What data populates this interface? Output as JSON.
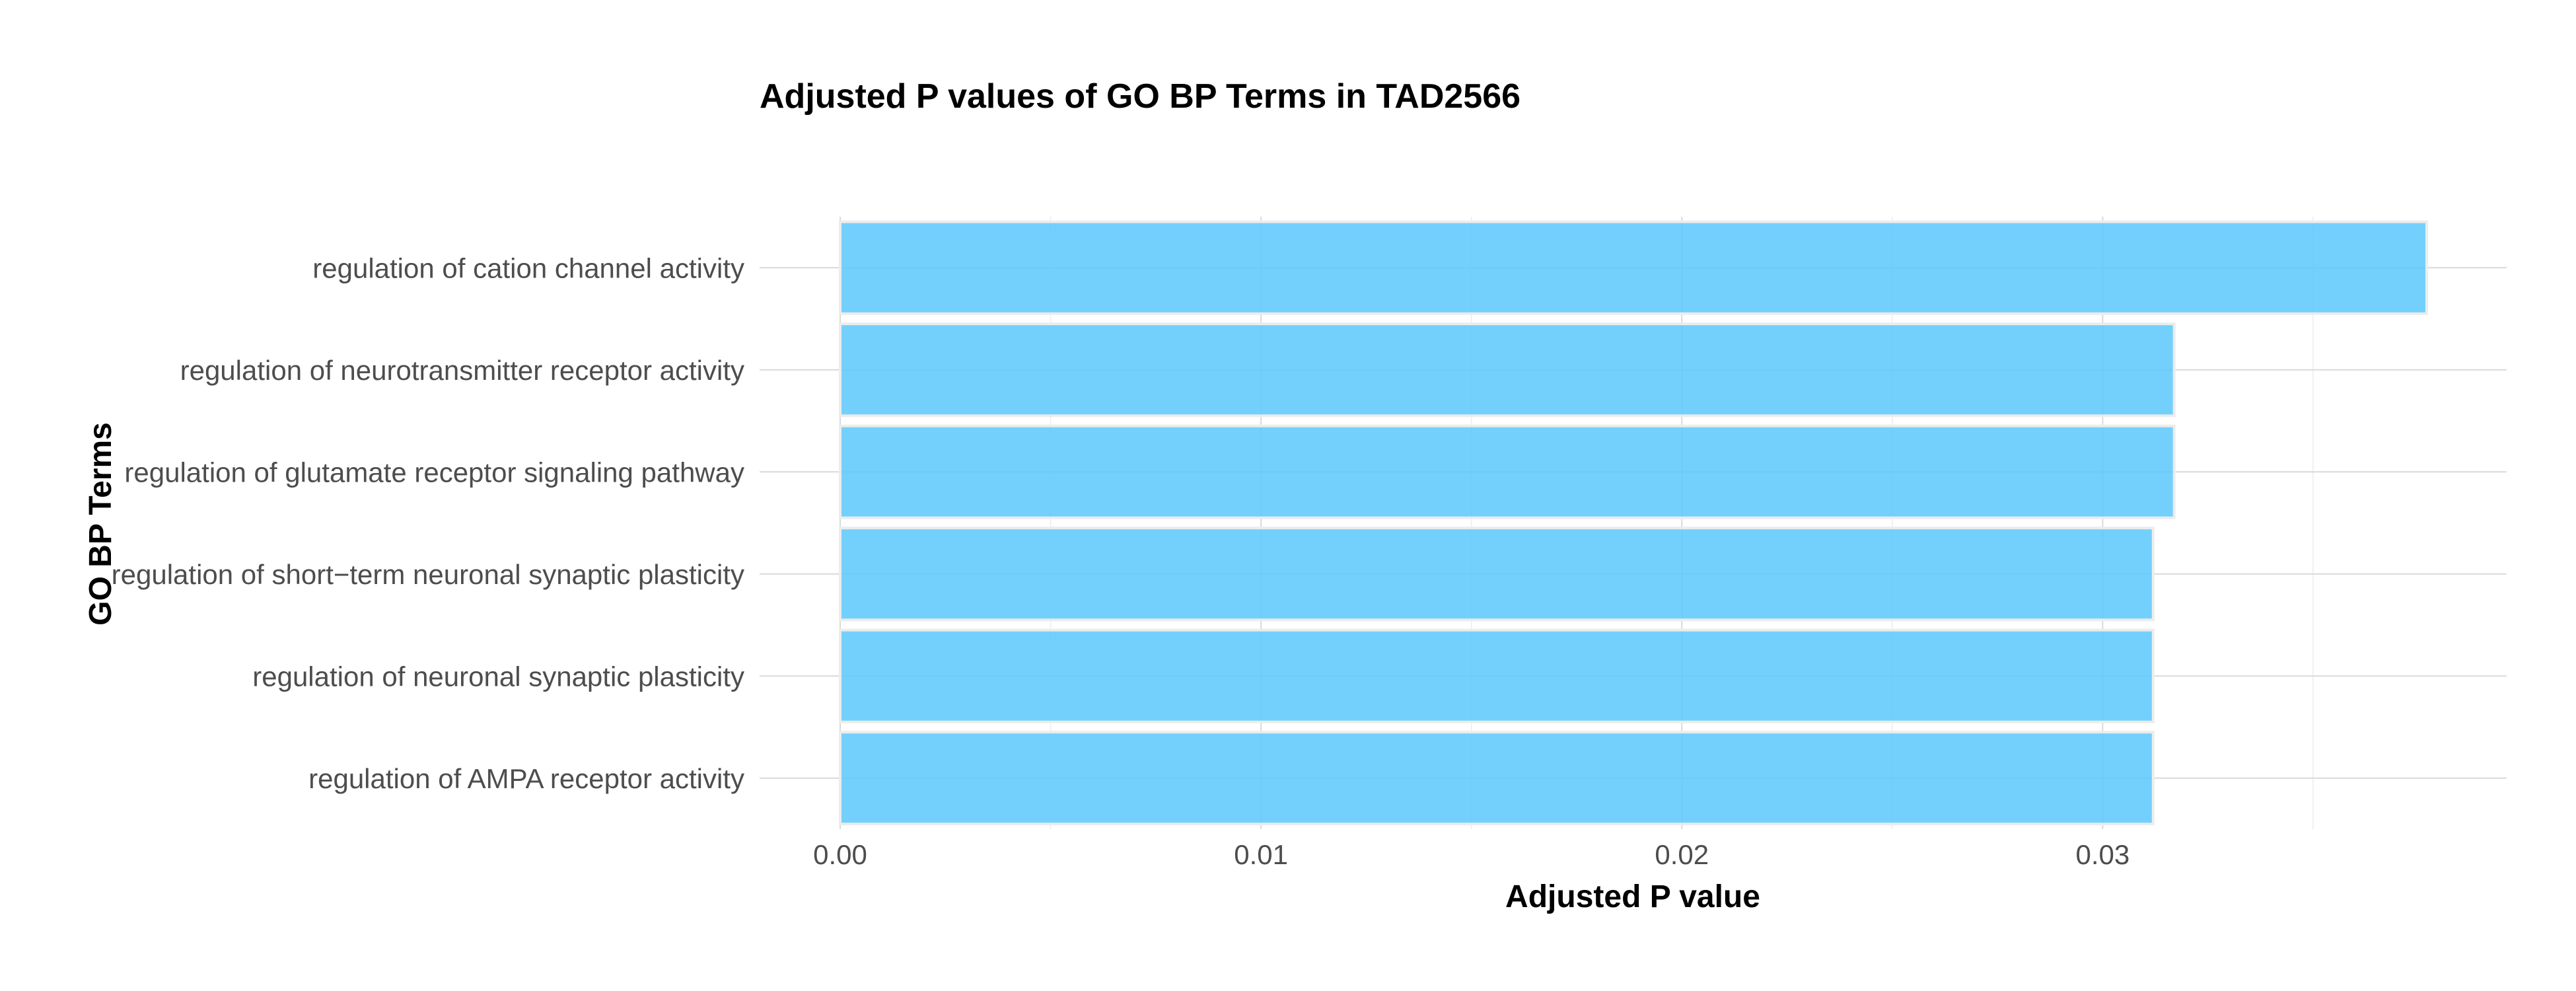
{
  "chart_data": {
    "type": "bar",
    "orientation": "horizontal",
    "title": "Adjusted P values of GO BP Terms in TAD2566",
    "xlabel": "Adjusted P value",
    "ylabel": "GO BP Terms",
    "categories": [
      "regulation of cation channel activity",
      "regulation of neurotransmitter receptor activity",
      "regulation of glutamate receptor signaling pathway",
      "regulation of short−term neuronal synaptic plasticity",
      "regulation of neuronal synaptic plasticity",
      "regulation of AMPA receptor activity"
    ],
    "values": [
      0.0377,
      0.0317,
      0.0317,
      0.0312,
      0.0312,
      0.0312
    ],
    "xlim": [
      0,
      0.0396
    ],
    "x_ticks": [
      0.0,
      0.01,
      0.02,
      0.03
    ],
    "x_tick_labels": [
      "0.00",
      "0.01",
      "0.02",
      "0.03"
    ],
    "grid": true,
    "legend": "none",
    "bar_color": "#5BC8FB"
  }
}
